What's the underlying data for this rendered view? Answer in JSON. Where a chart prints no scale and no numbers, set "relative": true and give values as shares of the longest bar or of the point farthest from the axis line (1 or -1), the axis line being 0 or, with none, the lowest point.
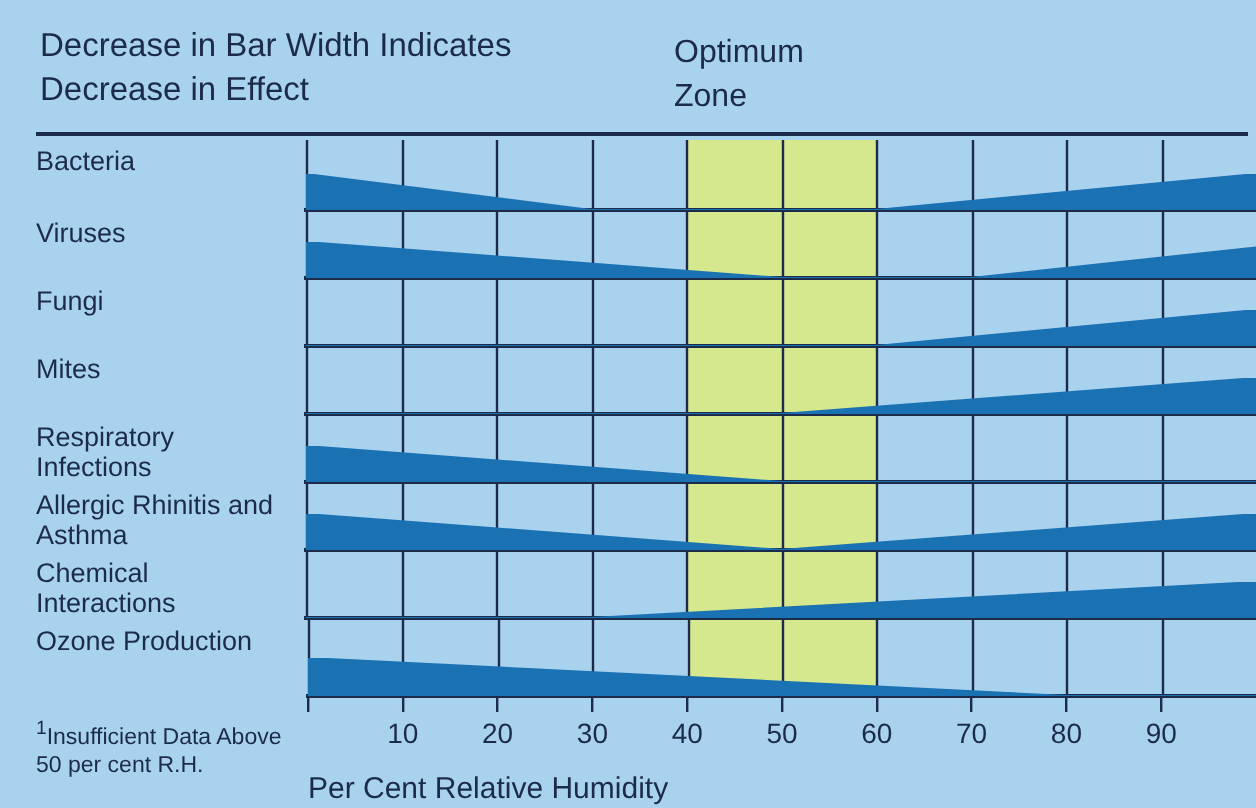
{
  "chart_data": [
    {
      "type": "area",
      "ylabel": "Bacteria",
      "x": [
        0,
        30,
        60,
        100
      ],
      "values": [
        1,
        0,
        0,
        1
      ],
      "color": "#1b72b3",
      "relative": true,
      "xlim": [
        0,
        100
      ],
      "xticks": [
        0,
        10,
        20,
        30,
        40,
        50,
        60,
        70,
        80,
        90
      ],
      "tick_labels": false,
      "grid": "x",
      "bands": [
        {
          "axis": "x",
          "from": 40,
          "to": 60,
          "label": "Optimum Zone",
          "color": "#d6e88e"
        }
      ],
      "annotations": [
        "Decrease in Bar Width Indicates Decrease in Effect"
      ]
    },
    {
      "type": "area",
      "ylabel": "Viruses",
      "x": [
        0,
        50,
        70,
        100
      ],
      "values": [
        1,
        0,
        0,
        0.85
      ],
      "color": "#1b72b3",
      "relative": true,
      "xlim": [
        0,
        100
      ],
      "xticks": [
        0,
        10,
        20,
        30,
        40,
        50,
        60,
        70,
        80,
        90
      ],
      "tick_labels": false,
      "grid": "x",
      "bands": [
        {
          "axis": "x",
          "from": 40,
          "to": 60,
          "color": "#d6e88e"
        }
      ]
    },
    {
      "type": "area",
      "ylabel": "Fungi",
      "x": [
        0,
        60,
        100
      ],
      "values": [
        0,
        0,
        1
      ],
      "color": "#1b72b3",
      "relative": true,
      "xlim": [
        0,
        100
      ],
      "xticks": [
        0,
        10,
        20,
        30,
        40,
        50,
        60,
        70,
        80,
        90
      ],
      "tick_labels": false,
      "grid": "x",
      "bands": [
        {
          "axis": "x",
          "from": 40,
          "to": 60,
          "color": "#d6e88e"
        }
      ]
    },
    {
      "type": "area",
      "ylabel": "Mites",
      "x": [
        0,
        50,
        100
      ],
      "values": [
        0,
        0,
        1
      ],
      "color": "#1b72b3",
      "relative": true,
      "xlim": [
        0,
        100
      ],
      "xticks": [
        0,
        10,
        20,
        30,
        40,
        50,
        60,
        70,
        80,
        90
      ],
      "tick_labels": false,
      "grid": "x",
      "bands": [
        {
          "axis": "x",
          "from": 40,
          "to": 60,
          "color": "#d6e88e"
        }
      ]
    },
    {
      "type": "area",
      "ylabel": "Respiratory Infections",
      "x": [
        0,
        50,
        100
      ],
      "values": [
        1,
        0,
        0
      ],
      "color": "#1b72b3",
      "relative": true,
      "xlim": [
        0,
        100
      ],
      "xticks": [
        0,
        10,
        20,
        30,
        40,
        50,
        60,
        70,
        80,
        90
      ],
      "tick_labels": false,
      "grid": "x",
      "bands": [
        {
          "axis": "x",
          "from": 40,
          "to": 60,
          "color": "#d6e88e"
        }
      ]
    },
    {
      "type": "area",
      "ylabel": "Allergic Rhinitis and Asthma",
      "x": [
        0,
        50,
        100
      ],
      "values": [
        1,
        0,
        1
      ],
      "color": "#1b72b3",
      "relative": true,
      "xlim": [
        0,
        100
      ],
      "xticks": [
        0,
        10,
        20,
        30,
        40,
        50,
        60,
        70,
        80,
        90
      ],
      "tick_labels": false,
      "grid": "x",
      "bands": [
        {
          "axis": "x",
          "from": 40,
          "to": 60,
          "color": "#d6e88e"
        }
      ]
    },
    {
      "type": "area",
      "ylabel": "Chemical Interactions",
      "x": [
        0,
        30,
        100
      ],
      "values": [
        0,
        0,
        1
      ],
      "color": "#1b72b3",
      "relative": true,
      "xlim": [
        0,
        100
      ],
      "xticks": [
        0,
        10,
        20,
        30,
        40,
        50,
        60,
        70,
        80,
        90
      ],
      "tick_labels": false,
      "grid": "x",
      "bands": [
        {
          "axis": "x",
          "from": 40,
          "to": 60,
          "color": "#d6e88e"
        }
      ]
    },
    {
      "type": "area",
      "ylabel": "Ozone Production",
      "x": [
        0,
        80,
        100
      ],
      "values": [
        1,
        0,
        0
      ],
      "color": "#1b72b3",
      "relative": true,
      "xlim": [
        0,
        100
      ],
      "xticks": [
        {
          "value": 0,
          "label": null
        },
        10,
        20,
        30,
        40,
        50,
        60,
        70,
        80,
        90
      ],
      "tick_labels": "x",
      "grid": "x",
      "xlabel": "Per Cent Relative Humidity",
      "bands": [
        {
          "axis": "x",
          "from": 40,
          "to": 60,
          "color": "#d6e88e"
        }
      ],
      "annotations": [
        "$^{1}$Insufficient Data Above 50 per cent R.H."
      ]
    }
  ]
}
